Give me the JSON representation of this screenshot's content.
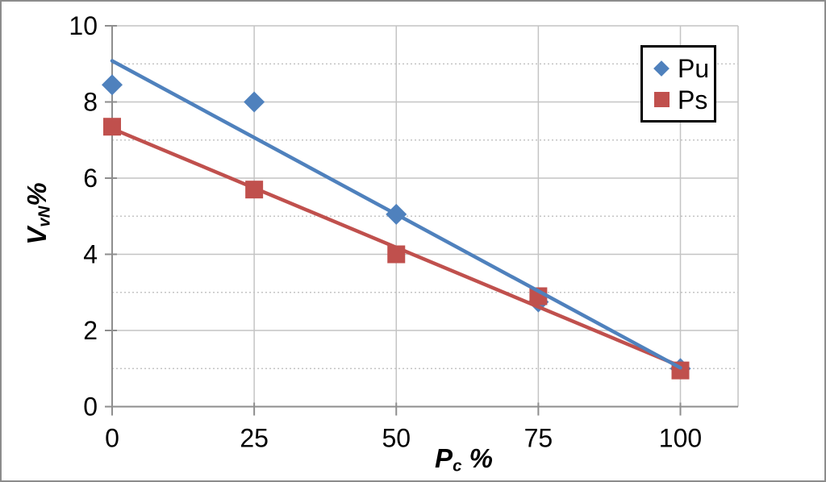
{
  "chart_data": {
    "type": "scatter",
    "title": "",
    "xlabel": {
      "main": "P",
      "sub": "c",
      "suffix": " %"
    },
    "ylabel": {
      "main": "V",
      "sub": "vN",
      "suffix": "%"
    },
    "xlim": [
      0,
      110
    ],
    "ylim": [
      0,
      10
    ],
    "x_ticks": [
      0,
      25,
      50,
      75,
      100
    ],
    "y_major_ticks": [
      0,
      2,
      4,
      6,
      8,
      10
    ],
    "y_minor_ticks": [
      1,
      3,
      5,
      7,
      9
    ],
    "grid": {
      "major": "solid",
      "minor": "dotted",
      "color": "#C4C4C4"
    },
    "legend_position": "top-right",
    "series": [
      {
        "name": "Pu",
        "marker": "diamond",
        "color": "#4F81BD",
        "x": [
          0,
          25,
          50,
          75,
          100
        ],
        "y": [
          8.45,
          8.0,
          5.05,
          2.75,
          1.0
        ],
        "trendline": [
          [
            0,
            9.08
          ],
          [
            100,
            1.02
          ]
        ]
      },
      {
        "name": "Ps",
        "marker": "square",
        "color": "#C0504D",
        "x": [
          0,
          25,
          50,
          75,
          100
        ],
        "y": [
          7.35,
          5.7,
          4.0,
          2.9,
          0.95
        ],
        "trendline": [
          [
            0,
            7.3
          ],
          [
            100,
            1.06
          ]
        ]
      }
    ],
    "colors": {
      "axis": "#8E8E8E",
      "gridline": "#C4C4C4",
      "text": "#000000",
      "figure_border": "#8C8C8C",
      "legend_border": "#000000",
      "background": "#FFFFFF"
    }
  }
}
